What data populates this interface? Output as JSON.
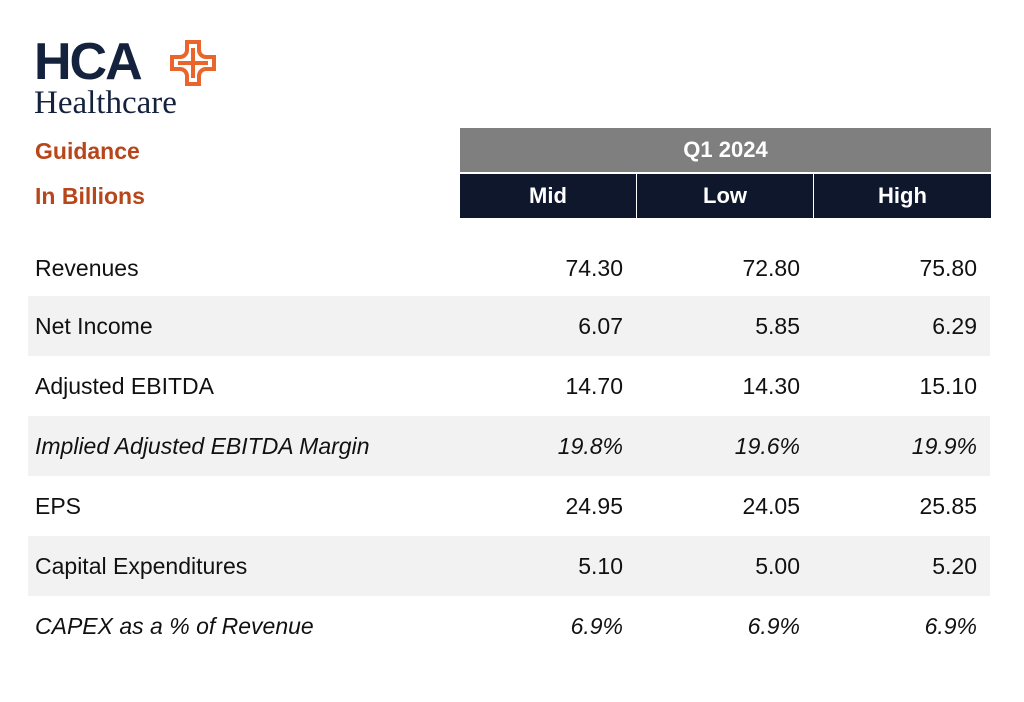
{
  "logo": {
    "primary": "HCA",
    "secondary": "Healthcare",
    "cross_icon": "plus-cross-icon",
    "primary_color": "#14223d",
    "accent_color": "#e9652b"
  },
  "labels": {
    "title": "Guidance",
    "subtitle": "In Billions"
  },
  "header": {
    "period": "Q1 2024",
    "columns": [
      "Mid",
      "Low",
      "High"
    ]
  },
  "rows": [
    {
      "label": "Revenues",
      "values": [
        "74.30",
        "72.80",
        "75.80"
      ],
      "italic": false,
      "shaded": false
    },
    {
      "label": "Net Income",
      "values": [
        "6.07",
        "5.85",
        "6.29"
      ],
      "italic": false,
      "shaded": true
    },
    {
      "label": "Adjusted EBITDA",
      "values": [
        "14.70",
        "14.30",
        "15.10"
      ],
      "italic": false,
      "shaded": false
    },
    {
      "label": "Implied Adjusted EBITDA Margin",
      "values": [
        "19.8%",
        "19.6%",
        "19.9%"
      ],
      "italic": true,
      "shaded": true
    },
    {
      "label": "EPS",
      "values": [
        "24.95",
        "24.05",
        "25.85"
      ],
      "italic": false,
      "shaded": false
    },
    {
      "label": "Capital Expenditures",
      "values": [
        "5.10",
        "5.00",
        "5.20"
      ],
      "italic": false,
      "shaded": true
    },
    {
      "label": "CAPEX as a % of Revenue",
      "values": [
        "6.9%",
        "6.9%",
        "6.9%"
      ],
      "italic": true,
      "shaded": false
    }
  ],
  "colors": {
    "label_accent": "#b8461b",
    "period_header": "#7f7f7f",
    "column_header": "#0f172d",
    "row_shade": "#f2f2f2"
  }
}
